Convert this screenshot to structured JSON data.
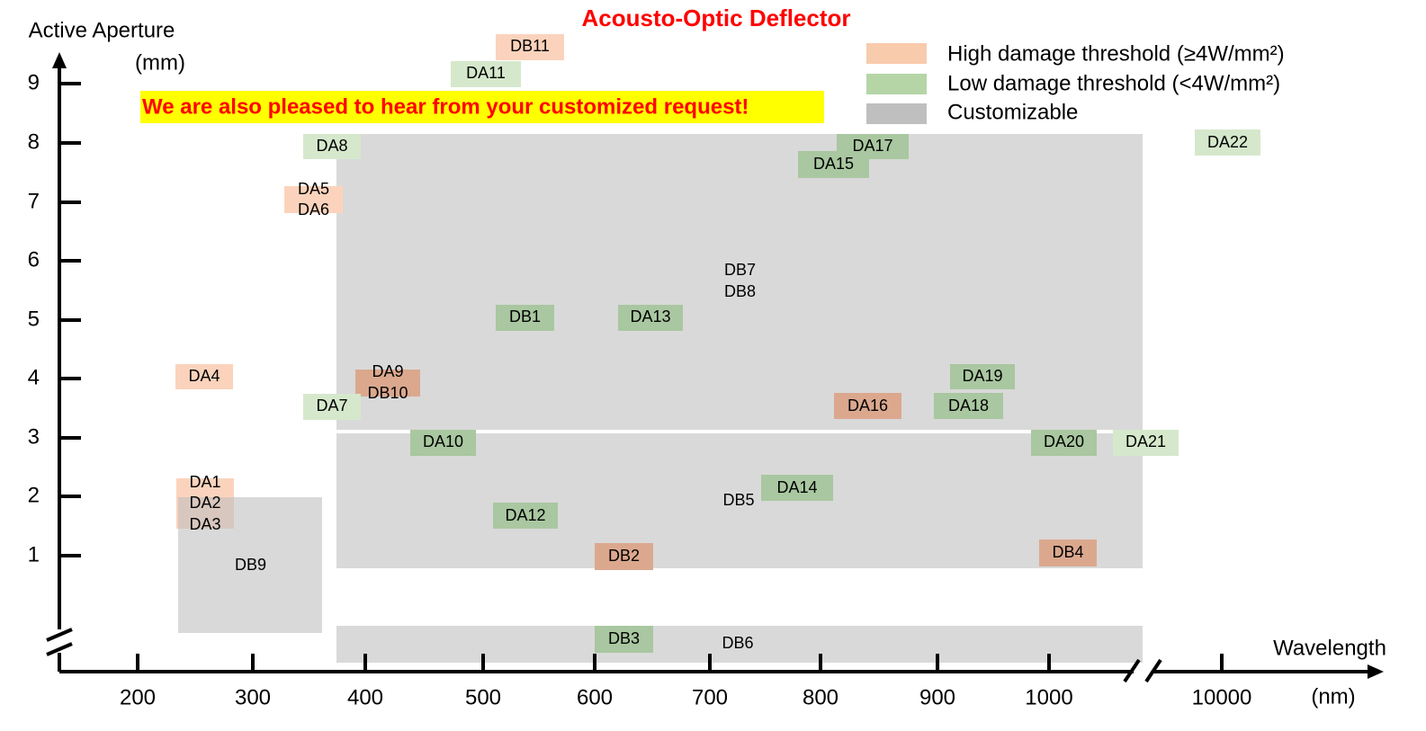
{
  "title": "Acousto-Optic Deflector",
  "banner": "We are also pleased to hear from your customized request!",
  "y_axis": {
    "label": [
      "Active Aperture",
      "(mm)"
    ],
    "ticks": [
      9,
      8,
      7,
      6,
      5,
      4,
      3,
      2,
      1
    ]
  },
  "x_axis": {
    "label": "Wavelength",
    "unit": "(nm)",
    "ticks": [
      200,
      300,
      400,
      500,
      600,
      700,
      800,
      900,
      1000,
      10000
    ]
  },
  "legend": [
    "High damage threshold (≥4W/mm²)",
    "Low damage threshold (<4W/mm²)",
    "Customizable"
  ],
  "items": [
    {
      "text": [
        "DB11"
      ]
    },
    {
      "text": [
        "DA11"
      ]
    },
    {
      "text": [
        "DA8"
      ]
    },
    {
      "text": [
        "DA5",
        "DA6"
      ]
    },
    {
      "text": [
        "DA17"
      ]
    },
    {
      "text": [
        "DA15"
      ]
    },
    {
      "text": [
        "DA22"
      ]
    },
    {
      "text": [
        "DB7",
        "DB8"
      ]
    },
    {
      "text": [
        "DB1"
      ]
    },
    {
      "text": [
        "DA13"
      ]
    },
    {
      "text": [
        "DA4"
      ]
    },
    {
      "text": [
        "DA9",
        "DB10"
      ]
    },
    {
      "text": [
        "DA7"
      ]
    },
    {
      "text": [
        "DA16"
      ]
    },
    {
      "text": [
        "DA19"
      ]
    },
    {
      "text": [
        "DA18"
      ]
    },
    {
      "text": [
        "DA10"
      ]
    },
    {
      "text": [
        "DA20"
      ]
    },
    {
      "text": [
        "DA21"
      ]
    },
    {
      "text": [
        "DA1",
        "DA2",
        "DA3"
      ]
    },
    {
      "text": [
        "DB5"
      ]
    },
    {
      "text": [
        "DA14"
      ]
    },
    {
      "text": [
        "DA12"
      ]
    },
    {
      "text": [
        "DB2"
      ]
    },
    {
      "text": [
        "DB4"
      ]
    },
    {
      "text": [
        "DB9"
      ]
    },
    {
      "text": [
        "DB3"
      ]
    },
    {
      "text": [
        "DB6"
      ]
    }
  ]
}
